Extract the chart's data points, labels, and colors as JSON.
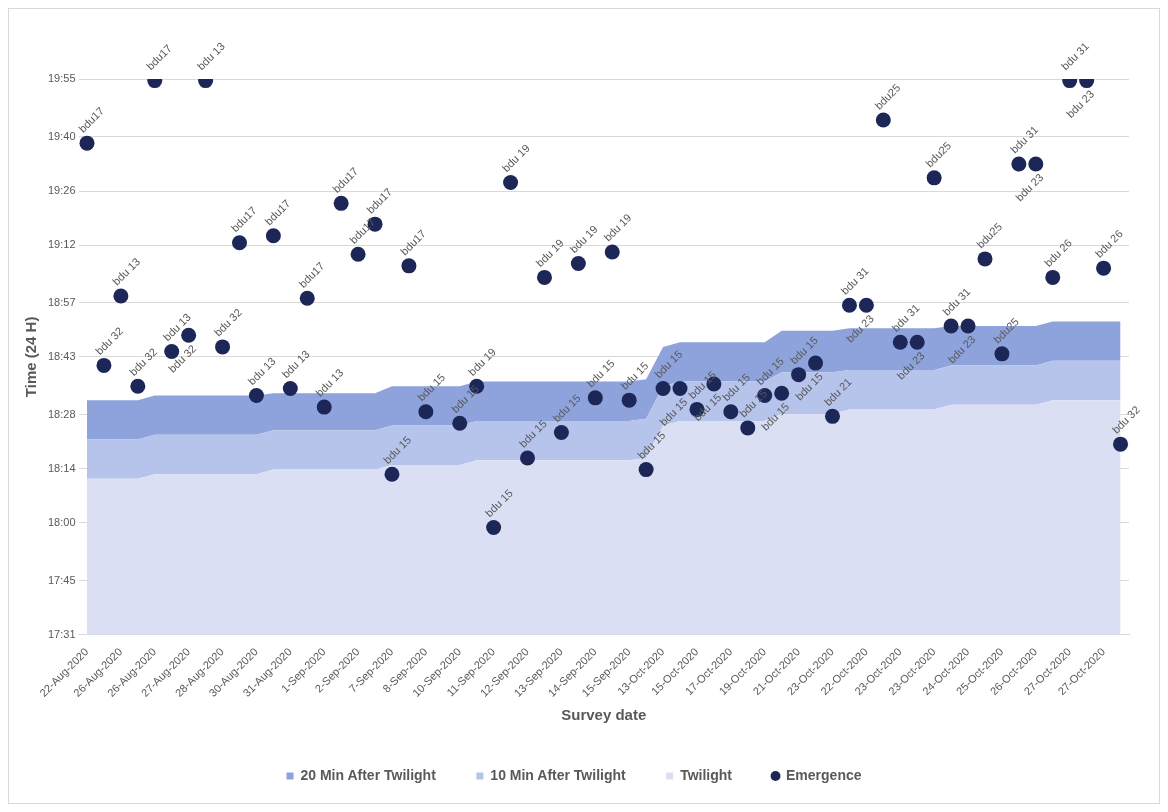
{
  "chart_data": {
    "type": "area",
    "xlabel": "Survey date",
    "ylabel": "Time (24 H)",
    "categories": [
      "22-Aug-2020",
      null,
      "26-Aug-2020",
      null,
      "26-Aug-2020",
      null,
      "27-Aug-2020",
      null,
      "28-Aug-2020",
      null,
      "30-Aug-2020",
      null,
      "31-Aug-2020",
      null,
      "1-Sep-2020",
      null,
      "2-Sep-2020",
      null,
      "7-Sep-2020",
      null,
      "8-Sep-2020",
      null,
      "10-Sep-2020",
      null,
      "11-Sep-2020",
      null,
      "12-Sep-2020",
      null,
      "13-Sep-2020",
      null,
      "14-Sep-2020",
      null,
      "15-Sep-2020",
      null,
      "13-Oct-2020",
      null,
      "15-Oct-2020",
      null,
      "17-Oct-2020",
      null,
      "19-Oct-2020",
      null,
      "21-Oct-2020",
      null,
      "23-Oct-2020",
      null,
      "22-Oct-2020",
      null,
      "23-Oct-2020",
      null,
      "23-Oct-2020",
      null,
      "24-Oct-2020",
      null,
      "25-Oct-2020",
      null,
      "26-Oct-2020",
      null,
      "27-Oct-2020",
      null,
      "27-Oct-2020",
      null
    ],
    "series": [
      {
        "name": "20 Min After Twilight",
        "color": "#8ea3dc",
        "values": [
          18.53,
          18.53,
          18.53,
          18.53,
          18.55,
          18.55,
          18.55,
          18.55,
          18.55,
          18.55,
          18.55,
          18.56,
          18.56,
          18.56,
          18.56,
          18.56,
          18.56,
          18.56,
          18.59,
          18.59,
          18.59,
          18.59,
          18.59,
          18.61,
          18.61,
          18.61,
          18.61,
          18.61,
          18.61,
          18.61,
          18.61,
          18.61,
          18.61,
          18.62,
          18.76,
          18.78,
          18.78,
          18.78,
          18.78,
          18.78,
          18.78,
          18.83,
          18.83,
          18.83,
          18.83,
          18.84,
          18.84,
          18.84,
          18.84,
          18.84,
          18.84,
          18.85,
          18.85,
          18.85,
          18.85,
          18.85,
          18.85,
          18.87,
          18.87,
          18.87,
          18.87,
          18.87
        ]
      },
      {
        "name": "10 Min After Twilight",
        "color": "#b6c3ea",
        "values": [
          18.36,
          18.36,
          18.36,
          18.36,
          18.38,
          18.38,
          18.38,
          18.38,
          18.38,
          18.38,
          18.38,
          18.4,
          18.4,
          18.4,
          18.4,
          18.4,
          18.4,
          18.4,
          18.42,
          18.42,
          18.42,
          18.42,
          18.42,
          18.44,
          18.44,
          18.44,
          18.44,
          18.44,
          18.44,
          18.44,
          18.44,
          18.44,
          18.44,
          18.45,
          18.59,
          18.61,
          18.61,
          18.61,
          18.61,
          18.61,
          18.61,
          18.65,
          18.65,
          18.65,
          18.65,
          18.66,
          18.66,
          18.66,
          18.66,
          18.66,
          18.66,
          18.68,
          18.68,
          18.68,
          18.68,
          18.68,
          18.68,
          18.7,
          18.7,
          18.7,
          18.7,
          18.7
        ]
      },
      {
        "name": "Twilight",
        "color": "#dadff4",
        "values": [
          18.19,
          18.19,
          18.19,
          18.19,
          18.21,
          18.21,
          18.21,
          18.21,
          18.21,
          18.21,
          18.21,
          18.23,
          18.23,
          18.23,
          18.23,
          18.23,
          18.23,
          18.23,
          18.25,
          18.25,
          18.25,
          18.25,
          18.25,
          18.27,
          18.27,
          18.27,
          18.27,
          18.27,
          18.27,
          18.27,
          18.27,
          18.27,
          18.27,
          18.28,
          18.42,
          18.44,
          18.44,
          18.44,
          18.44,
          18.44,
          18.44,
          18.47,
          18.47,
          18.47,
          18.47,
          18.49,
          18.49,
          18.49,
          18.49,
          18.49,
          18.49,
          18.51,
          18.51,
          18.51,
          18.51,
          18.51,
          18.51,
          18.53,
          18.53,
          18.53,
          18.53,
          18.53
        ]
      },
      {
        "name": "Emergence",
        "type": "scatter",
        "marker": "circle",
        "color": "#1c2758",
        "values": [
          19.64,
          18.68,
          18.98,
          18.59,
          19.91,
          18.74,
          18.81,
          19.91,
          18.76,
          19.21,
          18.55,
          19.24,
          18.58,
          18.97,
          18.5,
          19.38,
          19.16,
          19.29,
          18.21,
          19.11,
          18.48,
          null,
          18.43,
          18.59,
          17.98,
          19.47,
          18.28,
          19.06,
          18.39,
          19.12,
          18.54,
          19.17,
          18.53,
          18.23,
          18.58,
          18.58,
          18.49,
          18.6,
          18.48,
          18.41,
          18.55,
          18.56,
          18.64,
          18.69,
          18.46,
          18.94,
          18.94,
          19.74,
          18.78,
          18.78,
          19.49,
          18.85,
          18.85,
          19.14,
          18.73,
          19.55,
          19.55,
          19.06,
          19.91,
          19.91,
          19.1,
          18.34
        ],
        "value_labels": [
          "bdu17",
          "bdu 32",
          "bdu 13",
          "bdu 32",
          "bdu17",
          "bdu 13",
          "bdu 32",
          "bdu 13",
          "bdu 32",
          "bdu17",
          "bdu 13",
          "bdu17",
          "bdu 13",
          "bdu17",
          "bdu 13",
          "bdu17",
          "bdu17",
          "bdu17",
          "bdu 15",
          "bdu17",
          "bdu 15",
          null,
          "bdu 15",
          "bdu 19",
          "bdu 15",
          "bdu 19",
          "bdu 15",
          "bdu 19",
          "bdu 15",
          "bdu 19",
          "bdu 15",
          "bdu 19",
          "bdu 15",
          "bdu 15",
          "bdu 15",
          "bdu 15",
          "bdu 15",
          "bdu 15",
          "bdu 15",
          "bdu 15",
          "bdu 15",
          "bdu 15",
          "bdu 15",
          "bdu 15",
          "bdu 21",
          "bdu 31",
          "bdu 23",
          "bdu25",
          "bdu 31",
          "bdu 23",
          "bdu25",
          "bdu 31",
          "bdu 23",
          "bdu25",
          "bdu25",
          "bdu 31",
          "bdu 23",
          "bdu 26",
          "bdu 31",
          "bdu 23",
          "bdu 26",
          "bdu 32"
        ]
      }
    ],
    "ylim": [
      17.517,
      19.917
    ],
    "yticks": [
      {
        "value": 17.517,
        "label": "17:31"
      },
      {
        "value": 17.75,
        "label": "17:45"
      },
      {
        "value": 18.0,
        "label": "18:00"
      },
      {
        "value": 18.233,
        "label": "18:14"
      },
      {
        "value": 18.467,
        "label": "18:28"
      },
      {
        "value": 18.717,
        "label": "18:43"
      },
      {
        "value": 18.95,
        "label": "18:57"
      },
      {
        "value": 19.2,
        "label": "19:12"
      },
      {
        "value": 19.433,
        "label": "19:26"
      },
      {
        "value": 19.667,
        "label": "19:40"
      },
      {
        "value": 19.917,
        "label": "19:55"
      }
    ],
    "grid": "y",
    "legend": "bottom"
  }
}
